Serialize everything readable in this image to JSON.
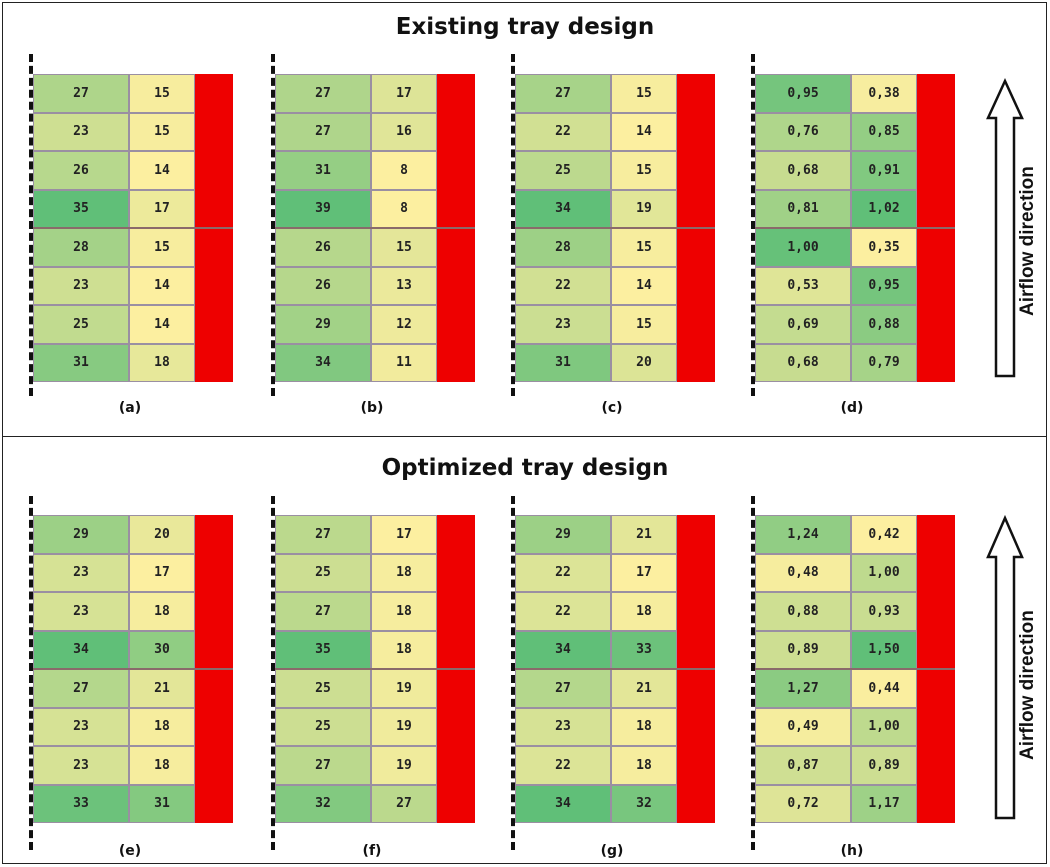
{
  "top": {
    "title": "Existing tray design",
    "panels": [
      {
        "label": "(a)",
        "left": [
          "27",
          "23",
          "26",
          "35",
          "28",
          "23",
          "25",
          "31"
        ],
        "right": [
          "15",
          "15",
          "14",
          "17",
          "15",
          "14",
          "14",
          "18"
        ]
      },
      {
        "label": "(b)",
        "left": [
          "27",
          "27",
          "31",
          "39",
          "26",
          "26",
          "29",
          "34"
        ],
        "right": [
          "17",
          "16",
          "8",
          "8",
          "15",
          "13",
          "12",
          "11"
        ]
      },
      {
        "label": "(c)",
        "left": [
          "27",
          "22",
          "25",
          "34",
          "28",
          "22",
          "23",
          "31"
        ],
        "right": [
          "15",
          "14",
          "15",
          "19",
          "15",
          "14",
          "15",
          "20"
        ]
      },
      {
        "label": "(d)",
        "left": [
          "0,95",
          "0,76",
          "0,68",
          "0,81",
          "1,00",
          "0,53",
          "0,69",
          "0,68"
        ],
        "right": [
          "0,38",
          "0,85",
          "0,91",
          "1,02",
          "0,35",
          "0,95",
          "0,88",
          "0,79"
        ]
      }
    ],
    "airflow_label": "Airflow direction"
  },
  "bottom": {
    "title": "Optimized tray design",
    "panels": [
      {
        "label": "(e)",
        "left": [
          "29",
          "23",
          "23",
          "34",
          "27",
          "23",
          "23",
          "33"
        ],
        "right": [
          "20",
          "17",
          "18",
          "30",
          "21",
          "18",
          "18",
          "31"
        ]
      },
      {
        "label": "(f)",
        "left": [
          "27",
          "25",
          "27",
          "35",
          "25",
          "25",
          "27",
          "32"
        ],
        "right": [
          "17",
          "18",
          "18",
          "18",
          "19",
          "19",
          "19",
          "27"
        ]
      },
      {
        "label": "(g)",
        "left": [
          "29",
          "22",
          "22",
          "34",
          "27",
          "23",
          "22",
          "34"
        ],
        "right": [
          "21",
          "17",
          "18",
          "33",
          "21",
          "18",
          "18",
          "32"
        ]
      },
      {
        "label": "(h)",
        "left": [
          "1,24",
          "0,48",
          "0,88",
          "0,89",
          "1,27",
          "0,49",
          "0,87",
          "0,72"
        ],
        "right": [
          "0,42",
          "1,00",
          "0,93",
          "1,50",
          "0,44",
          "1,00",
          "0,89",
          "1,17"
        ]
      }
    ],
    "airflow_label": "Airflow direction"
  },
  "colors": {
    "tray_red": "#ee0000",
    "low": "#fcefa0",
    "mid": "#c6dc90",
    "high": "#60bf78"
  }
}
